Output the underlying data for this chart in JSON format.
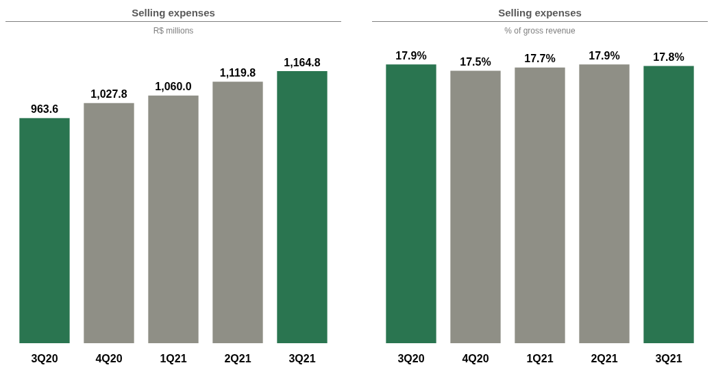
{
  "chart_data": [
    {
      "type": "bar",
      "title": "Selling expenses",
      "subtitle": "R$ millions",
      "categories": [
        "3Q20",
        "4Q20",
        "1Q21",
        "2Q21",
        "3Q21"
      ],
      "values": [
        963.6,
        1027.8,
        1060.0,
        1119.8,
        1164.8
      ],
      "value_labels": [
        "963.6",
        "1,027.8",
        "1,060.0",
        "1,119.8",
        "1,164.8"
      ],
      "colors": [
        "#2a7550",
        "#8f8f86",
        "#8f8f86",
        "#8f8f86",
        "#2a7550"
      ]
    },
    {
      "type": "bar",
      "title": "Selling expenses",
      "subtitle": "% of gross revenue",
      "categories": [
        "3Q20",
        "4Q20",
        "1Q21",
        "2Q21",
        "3Q21"
      ],
      "values": [
        17.9,
        17.5,
        17.7,
        17.9,
        17.8
      ],
      "value_labels": [
        "17.9%",
        "17.5%",
        "17.7%",
        "17.9%",
        "17.8%"
      ],
      "colors": [
        "#2a7550",
        "#8f8f86",
        "#8f8f86",
        "#8f8f86",
        "#2a7550"
      ]
    }
  ]
}
